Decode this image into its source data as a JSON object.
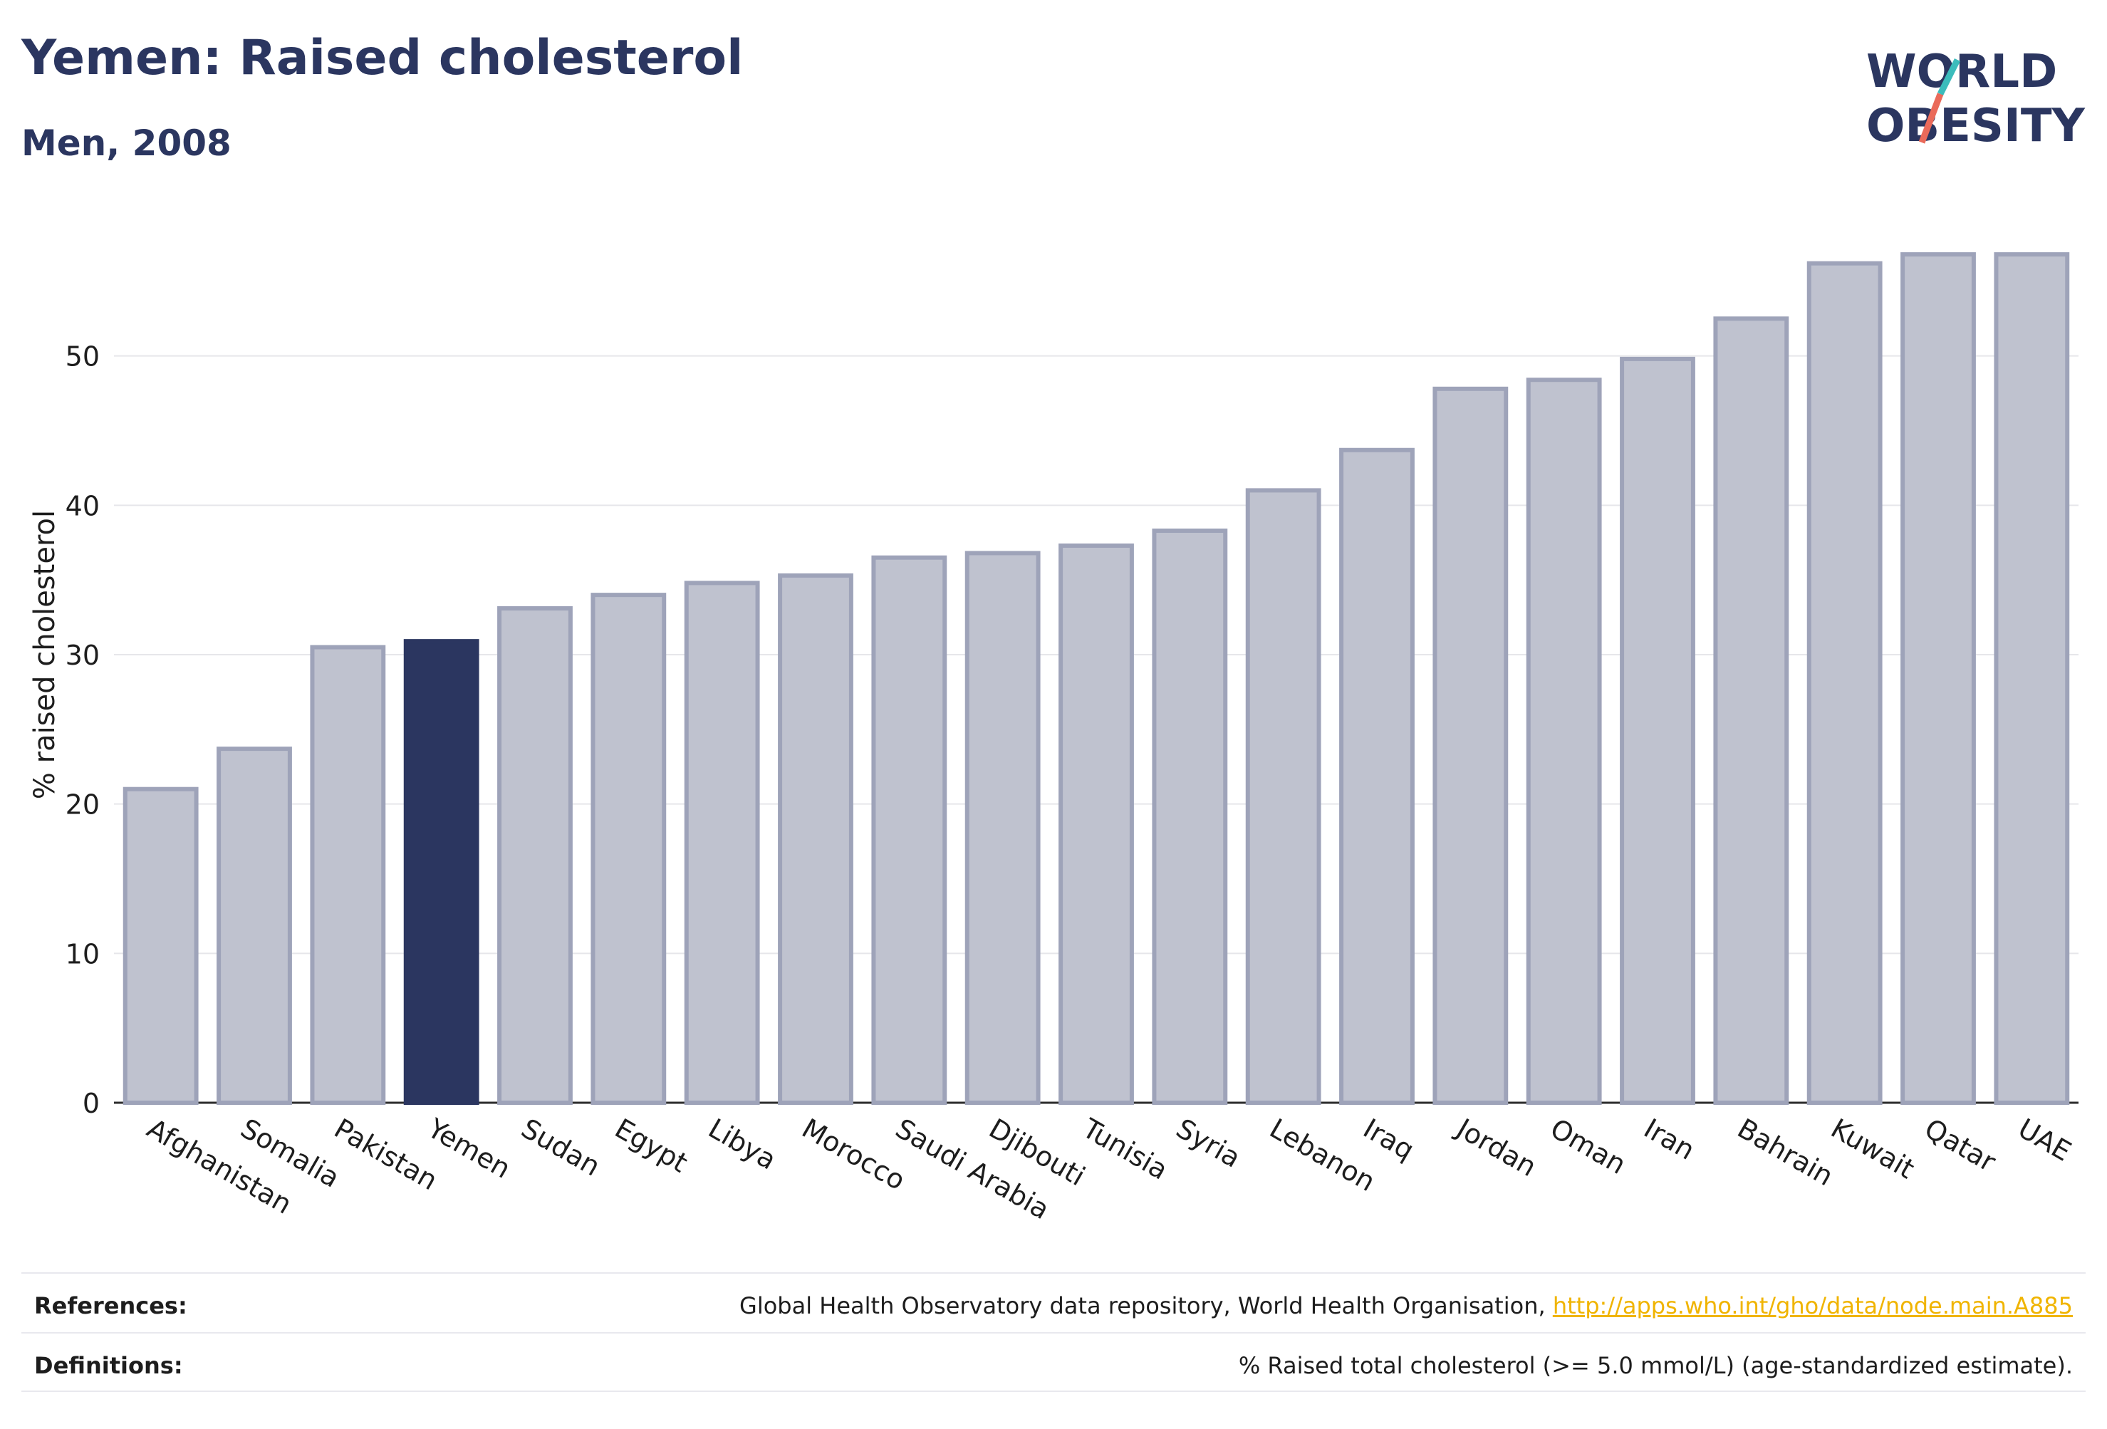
{
  "title": "Yemen: Raised cholesterol",
  "subtitle": "Men, 2008",
  "logo": {
    "line1": "WORLD",
    "line2": "OBESITY",
    "accent_teal": "#3cbcbc",
    "accent_coral": "#ea6a5a"
  },
  "colors": {
    "bar": "#bfc2cf",
    "bar_stroke": "#9ea3b9",
    "highlight": "#2b3660",
    "text": "#2b3660"
  },
  "chart_data": {
    "type": "bar",
    "categories": [
      "Afghanistan",
      "Somalia",
      "Pakistan",
      "Yemen",
      "Sudan",
      "Egypt",
      "Libya",
      "Morocco",
      "Saudi Arabia",
      "Djibouti",
      "Tunisia",
      "Syria",
      "Lebanon",
      "Iraq",
      "Jordan",
      "Oman",
      "Iran",
      "Bahrain",
      "Kuwait",
      "Qatar",
      "UAE"
    ],
    "values": [
      21.0,
      23.7,
      30.5,
      30.9,
      33.1,
      34.0,
      34.8,
      35.3,
      36.5,
      36.8,
      37.3,
      38.3,
      41.0,
      43.7,
      47.8,
      48.4,
      49.8,
      52.5,
      56.2,
      56.8,
      56.8
    ],
    "highlight": "Yemen",
    "ylabel": "% raised cholesterol",
    "xlabel": "",
    "ylim": [
      0,
      60
    ],
    "yticks": [
      0,
      10,
      20,
      30,
      40,
      50
    ],
    "grid": true
  },
  "footer": {
    "references_label": "References:",
    "references_text": "Global Health Observatory data repository, World Health Organisation, ",
    "references_link": "http://apps.who.int/gho/data/node.main.A885",
    "definitions_label": "Definitions:",
    "definitions_text": "% Raised total cholesterol (>= 5.0 mmol/L) (age-standardized estimate)."
  }
}
